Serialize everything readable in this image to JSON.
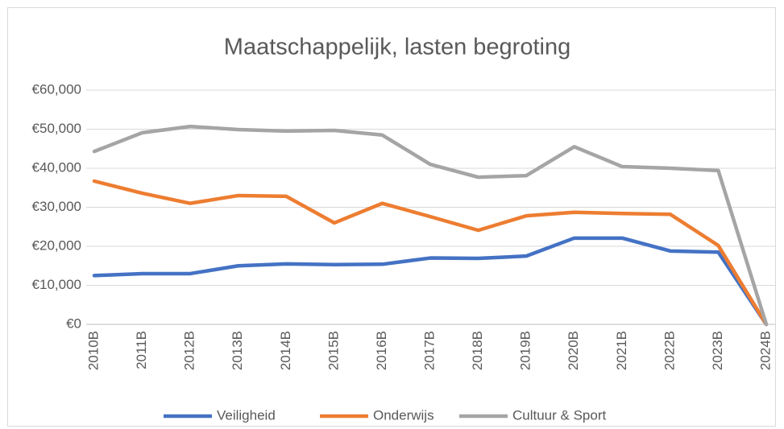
{
  "chart_data": {
    "type": "line",
    "title": "Maatschappelijk, lasten begroting",
    "categories": [
      "2010B",
      "2011B",
      "2012B",
      "2013B",
      "2014B",
      "2015B",
      "2016B",
      "2017B",
      "2018B",
      "2019B",
      "2020B",
      "2021B",
      "2022B",
      "2023B",
      "2024B"
    ],
    "series": [
      {
        "name": "Veiligheid",
        "color": "#4472c4",
        "values": [
          12500,
          13000,
          13000,
          15000,
          15500,
          15300,
          15400,
          17000,
          16900,
          17500,
          22100,
          22100,
          18800,
          18500,
          0
        ]
      },
      {
        "name": "Onderwijs",
        "color": "#ed7d31",
        "values": [
          36700,
          33600,
          31000,
          33000,
          32800,
          26000,
          31000,
          27600,
          24100,
          27800,
          28700,
          28400,
          28200,
          20200,
          0
        ]
      },
      {
        "name": "Cultuur & Sport",
        "color": "#a5a5a5",
        "values": [
          44300,
          49100,
          50700,
          49900,
          49500,
          49700,
          48500,
          41000,
          37700,
          38100,
          45500,
          40400,
          40000,
          39400,
          0
        ]
      }
    ],
    "ylim": [
      0,
      60000
    ],
    "yticks": [
      {
        "value": 0,
        "label": "€0"
      },
      {
        "value": 10000,
        "label": "€10,000"
      },
      {
        "value": 20000,
        "label": "€20,000"
      },
      {
        "value": 30000,
        "label": "€30,000"
      },
      {
        "value": 40000,
        "label": "€40,000"
      },
      {
        "value": 50000,
        "label": "€50,000"
      },
      {
        "value": 60000,
        "label": "€60,000"
      }
    ],
    "grid": true,
    "legend": "bottom"
  }
}
